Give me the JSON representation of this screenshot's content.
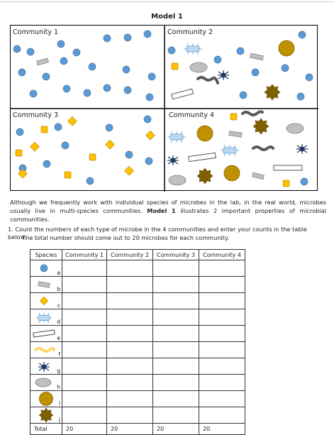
{
  "title": "Model 1",
  "communities": [
    "Community 1",
    "Community 2",
    "Community 3",
    "Community 4"
  ],
  "paragraph_a": "Although we frequently work with individual species of microbes in the lab, in the real world, microbes usually live in multi-species communities. ",
  "paragraph_bold": "Model 1",
  "paragraph_b": " illustrates 2 important properties of microbial communities.",
  "question_line1": "1. Count the numbers of each type of microbe in the 4 communities and enter your counts in the table below.",
  "question_line2": "The total number should come out to 20 microbes for each community.",
  "table": {
    "headers": [
      "Species",
      "Community 1",
      "Community 2",
      "Community 3",
      "Community 4"
    ],
    "rows": [
      {
        "letter": "a",
        "icon": "blue-circle-icon"
      },
      {
        "letter": "b",
        "icon": "gray-rod-icon"
      },
      {
        "letter": "c",
        "icon": "yellow-diamond-icon"
      },
      {
        "letter": "d",
        "icon": "blue-flagellate-icon"
      },
      {
        "letter": "e",
        "icon": "white-rod-icon"
      },
      {
        "letter": "f",
        "icon": "yellow-wavy-icon"
      },
      {
        "letter": "g",
        "icon": "navy-spider-icon"
      },
      {
        "letter": "h",
        "icon": "gray-oval-icon"
      },
      {
        "letter": "i",
        "icon": "gold-circle-icon"
      },
      {
        "letter": "j",
        "icon": "brown-star-icon"
      }
    ],
    "total_label": "Total",
    "totals": [
      "20",
      "20",
      "20",
      "20"
    ]
  },
  "colors": {
    "blue": "#5b9bd5",
    "yellow": "#ffc000",
    "gold": "#bf9000",
    "brown": "#7f6000",
    "gray": "#bfbfbf",
    "navy": "#203864",
    "lightblue": "#bdd7ee"
  }
}
